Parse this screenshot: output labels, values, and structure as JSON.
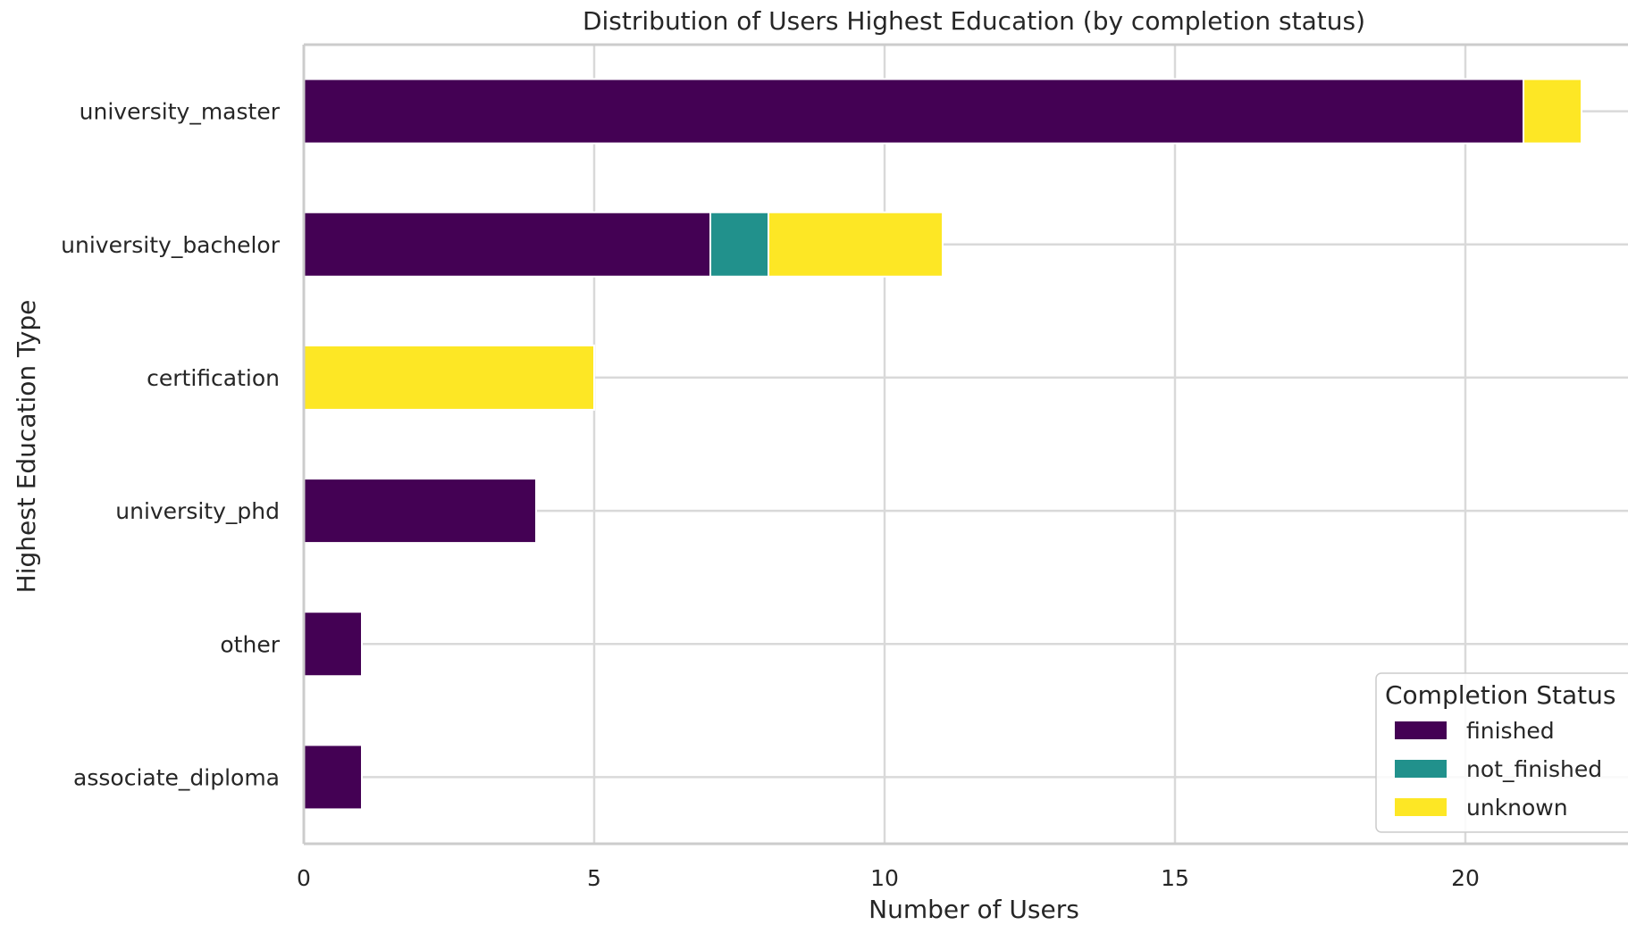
{
  "chart_data": {
    "type": "bar",
    "orientation": "horizontal",
    "stacked": true,
    "title": "Distribution of Users Highest Education (by completion status)",
    "xlabel": "Number of Users",
    "ylabel": "Highest Education Type",
    "xlim": [
      0,
      22.5
    ],
    "xticks": [
      0,
      5,
      10,
      15,
      20
    ],
    "grid": true,
    "categories": [
      "university_master",
      "university_bachelor",
      "certification",
      "university_phd",
      "other",
      "associate_diploma"
    ],
    "series": [
      {
        "name": "finished",
        "color": "#440154",
        "values": [
          21,
          7,
          0,
          4,
          1,
          1
        ]
      },
      {
        "name": "not_finished",
        "color": "#21918c",
        "values": [
          0,
          1,
          0,
          0,
          0,
          0
        ]
      },
      {
        "name": "unknown",
        "color": "#fde725",
        "values": [
          1,
          3,
          5,
          0,
          0,
          0
        ]
      }
    ],
    "legend": {
      "title": "Completion Status",
      "placement": "bottom-right"
    }
  }
}
